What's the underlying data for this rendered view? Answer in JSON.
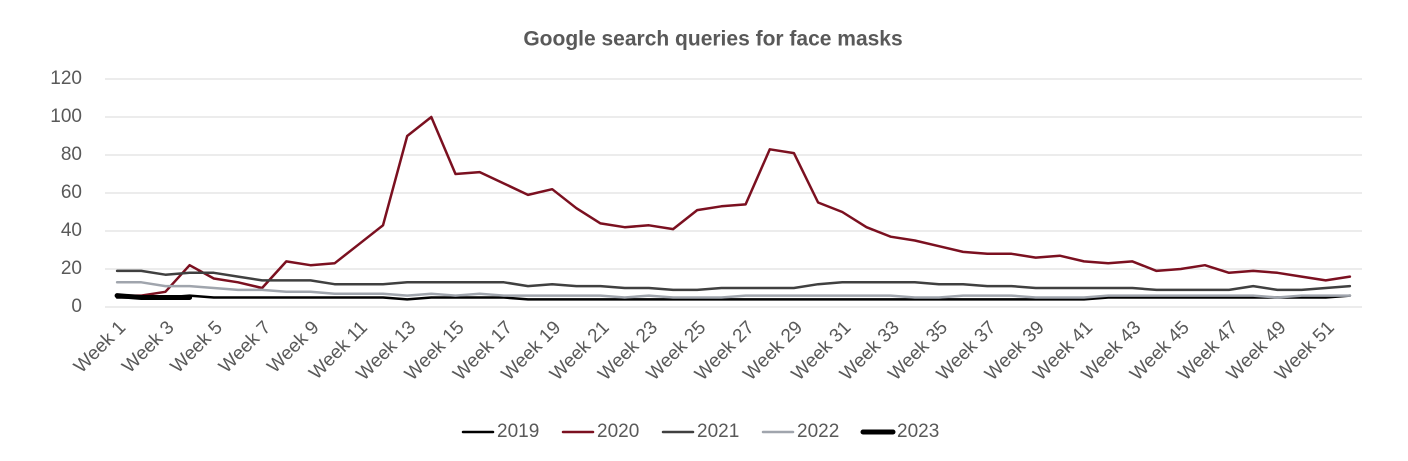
{
  "chart_data": {
    "type": "line",
    "title": "Google search queries for face masks",
    "categories": [
      "Week 1",
      null,
      "Week 3",
      null,
      "Week 5",
      null,
      "Week 7",
      null,
      "Week 9",
      null,
      "Week 11",
      null,
      "Week 13",
      null,
      "Week 15",
      null,
      "Week 17",
      null,
      "Week 19",
      null,
      "Week 21",
      null,
      "Week 23",
      null,
      "Week 25",
      null,
      "Week 27",
      null,
      "Week 29",
      null,
      "Week 31",
      null,
      "Week 33",
      null,
      "Week 35",
      null,
      "Week 37",
      null,
      "Week 39",
      null,
      "Week 41",
      null,
      "Week 43",
      null,
      "Week 45",
      null,
      "Week 47",
      null,
      "Week 49",
      null,
      "Week 51",
      null
    ],
    "series": [
      {
        "name": "2019",
        "color": "#000000",
        "line_width": 2.5,
        "values": [
          5,
          5,
          5,
          6,
          5,
          5,
          5,
          5,
          5,
          5,
          5,
          5,
          4,
          5,
          5,
          5,
          5,
          4,
          4,
          4,
          4,
          4,
          4,
          4,
          4,
          4,
          4,
          4,
          4,
          4,
          4,
          4,
          4,
          4,
          4,
          4,
          4,
          4,
          4,
          4,
          4,
          5,
          5,
          5,
          5,
          5,
          5,
          5,
          5,
          5,
          5,
          6
        ]
      },
      {
        "name": "2020",
        "color": "#7b1020",
        "line_width": 2.5,
        "values": [
          6,
          6,
          8,
          22,
          15,
          13,
          10,
          24,
          22,
          23,
          33,
          43,
          90,
          100,
          70,
          71,
          65,
          59,
          62,
          52,
          44,
          42,
          43,
          41,
          51,
          53,
          54,
          83,
          81,
          55,
          50,
          42,
          37,
          35,
          32,
          29,
          28,
          28,
          26,
          27,
          24,
          23,
          24,
          19,
          20,
          22,
          18,
          19,
          18,
          16,
          14,
          16
        ]
      },
      {
        "name": "2021",
        "color": "#404040",
        "line_width": 2.5,
        "values": [
          19,
          19,
          17,
          18,
          18,
          16,
          14,
          14,
          14,
          12,
          12,
          12,
          13,
          13,
          13,
          13,
          13,
          11,
          12,
          11,
          11,
          10,
          10,
          9,
          9,
          10,
          10,
          10,
          10,
          12,
          13,
          13,
          13,
          13,
          12,
          12,
          11,
          11,
          10,
          10,
          10,
          10,
          10,
          9,
          9,
          9,
          9,
          11,
          9,
          9,
          10,
          11
        ]
      },
      {
        "name": "2022",
        "color": "#a0a5ad",
        "line_width": 2.5,
        "values": [
          13,
          13,
          11,
          11,
          10,
          9,
          9,
          8,
          8,
          7,
          7,
          7,
          6,
          7,
          6,
          7,
          6,
          6,
          6,
          6,
          6,
          5,
          6,
          5,
          5,
          5,
          6,
          6,
          6,
          6,
          6,
          6,
          6,
          5,
          5,
          6,
          6,
          6,
          5,
          5,
          5,
          6,
          6,
          6,
          6,
          6,
          6,
          6,
          5,
          6,
          6,
          6
        ]
      },
      {
        "name": "2023",
        "color": "#000000",
        "line_width": 5,
        "values": [
          6,
          5,
          5,
          5,
          null,
          null,
          null,
          null,
          null,
          null,
          null,
          null,
          null,
          null,
          null,
          null,
          null,
          null,
          null,
          null,
          null,
          null,
          null,
          null,
          null,
          null,
          null,
          null,
          null,
          null,
          null,
          null,
          null,
          null,
          null,
          null,
          null,
          null,
          null,
          null,
          null,
          null,
          null,
          null,
          null,
          null,
          null,
          null,
          null,
          null,
          null,
          null
        ]
      }
    ],
    "ylim": [
      0,
      120
    ],
    "yticks": [
      0,
      20,
      40,
      60,
      80,
      100,
      120
    ],
    "grid": true,
    "legend": "bottom"
  }
}
